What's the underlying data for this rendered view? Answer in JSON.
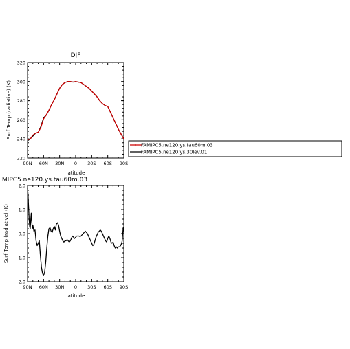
{
  "panels": {
    "top": {
      "title": "DJF",
      "ylabel": "Surf Temp (radiative) (K)",
      "xlabel": "latitude"
    },
    "bottom": {
      "title": "MIPC5.ne120.ys.tau60m.03",
      "ylabel": "Surf Temp (radiative) (K)",
      "xlabel": "latitude"
    }
  },
  "legend": {
    "items": [
      {
        "label": "FAMIPC5.ne120.ys.tau60m.03",
        "color": "#cc0000"
      },
      {
        "label": "FAMIPC5.ne120.ys.30lev.01",
        "color": "#000000"
      }
    ]
  },
  "chart_data": [
    {
      "type": "line",
      "title": "DJF",
      "xlabel": "latitude",
      "ylabel": "Surf Temp (radiative) (K)",
      "xlim": [
        90,
        -90
      ],
      "ylim": [
        220,
        320
      ],
      "xticks": [
        90,
        60,
        30,
        0,
        -30,
        -60,
        -90
      ],
      "xtick_labels": [
        "90N",
        "60N",
        "30N",
        "0",
        "30S",
        "60S",
        "90S"
      ],
      "yticks": [
        220,
        240,
        260,
        280,
        300,
        320
      ],
      "ytick_labels": [
        "220",
        "240",
        "260",
        "280",
        "300",
        "320"
      ],
      "x": [
        90,
        85,
        80,
        75,
        70,
        65,
        60,
        55,
        50,
        45,
        40,
        35,
        30,
        25,
        20,
        15,
        10,
        5,
        0,
        -5,
        -10,
        -15,
        -20,
        -25,
        -30,
        -35,
        -40,
        -45,
        -50,
        -55,
        -60,
        -65,
        -70,
        -75,
        -80,
        -85,
        -90
      ],
      "series": [
        {
          "name": "FAMIPC5.ne120.ys.tau60m.03",
          "color": "#cc0000",
          "values": [
            239,
            240,
            244,
            246,
            247,
            252,
            261,
            265,
            270,
            276,
            281,
            287,
            293,
            297,
            299,
            300,
            300,
            299.5,
            300,
            299.5,
            299,
            297,
            295,
            293,
            290,
            287,
            284,
            280,
            277,
            275,
            274,
            268,
            262,
            256,
            250,
            245,
            240
          ]
        },
        {
          "name": "FAMIPC5.ne120.ys.30lev.01",
          "color": "#000000",
          "values": [
            238,
            240,
            243,
            246,
            247,
            253,
            262,
            265,
            270,
            276,
            281,
            287,
            293,
            297,
            299,
            300,
            300,
            299.5,
            300,
            299.5,
            299,
            297,
            295,
            293,
            290,
            287,
            284,
            280,
            277,
            275,
            274,
            268,
            262,
            256,
            250,
            245,
            240
          ]
        }
      ]
    },
    {
      "type": "line",
      "title": "MIPC5.ne120.ys.tau60m.03",
      "xlabel": "latitude",
      "ylabel": "Surf Temp (radiative) (K)",
      "xlim": [
        90,
        -90
      ],
      "ylim": [
        -2,
        2
      ],
      "xticks": [
        90,
        60,
        30,
        0,
        -30,
        -60,
        -90
      ],
      "xtick_labels": [
        "90N",
        "60N",
        "30N",
        "0",
        "30S",
        "60S",
        "90S"
      ],
      "yticks": [
        -2,
        -1,
        0,
        1,
        2
      ],
      "ytick_labels": [
        "-2.0",
        "-1.0",
        "0.0",
        "1.0",
        "2.0"
      ],
      "series": [
        {
          "name": "",
          "color": "#000000",
          "x": [
            90,
            89,
            88,
            87,
            86,
            85,
            84,
            83,
            82,
            81,
            80,
            78,
            76,
            74,
            72,
            70,
            68,
            66,
            64,
            62,
            60,
            58,
            56,
            54,
            52,
            50,
            48,
            46,
            44,
            42,
            40,
            38,
            36,
            34,
            32,
            30,
            28,
            26,
            24,
            22,
            20,
            18,
            16,
            14,
            12,
            10,
            8,
            6,
            4,
            2,
            0,
            -2,
            -4,
            -6,
            -8,
            -10,
            -12,
            -14,
            -16,
            -18,
            -20,
            -22,
            -24,
            -26,
            -28,
            -30,
            -32,
            -34,
            -36,
            -38,
            -40,
            -42,
            -44,
            -46,
            -48,
            -50,
            -52,
            -54,
            -56,
            -58,
            -60,
            -62,
            -64,
            -66,
            -68,
            -70,
            -72,
            -74,
            -76,
            -78,
            -80,
            -82,
            -84,
            -86,
            -87,
            -88,
            -89,
            -90
          ],
          "values": [
            1.9,
            1.6,
            1.1,
            0.6,
            0.3,
            0.2,
            0.55,
            0.85,
            0.5,
            0.2,
            0.35,
            0.1,
            0.15,
            -0.3,
            -0.5,
            -0.4,
            -0.3,
            -0.9,
            -1.4,
            -1.65,
            -1.75,
            -1.6,
            -1.2,
            -0.6,
            -0.1,
            0.2,
            0.25,
            0.1,
            0.05,
            0.2,
            0.3,
            0.15,
            0.4,
            0.45,
            0.35,
            0.1,
            -0.1,
            -0.2,
            -0.3,
            -0.35,
            -0.3,
            -0.3,
            -0.25,
            -0.3,
            -0.35,
            -0.3,
            -0.2,
            -0.1,
            -0.15,
            -0.2,
            -0.15,
            -0.1,
            -0.1,
            -0.1,
            -0.12,
            -0.1,
            -0.05,
            0.0,
            0.05,
            0.1,
            0.05,
            0.0,
            -0.1,
            -0.2,
            -0.3,
            -0.4,
            -0.5,
            -0.45,
            -0.3,
            -0.15,
            -0.05,
            0.05,
            0.1,
            0.15,
            0.1,
            0.0,
            -0.1,
            -0.2,
            -0.3,
            -0.35,
            -0.2,
            -0.1,
            -0.2,
            -0.35,
            -0.4,
            -0.35,
            -0.5,
            -0.6,
            -0.55,
            -0.6,
            -0.55,
            -0.55,
            -0.5,
            -0.4,
            -0.3,
            0.0,
            0.25,
            0.1
          ]
        }
      ]
    }
  ]
}
